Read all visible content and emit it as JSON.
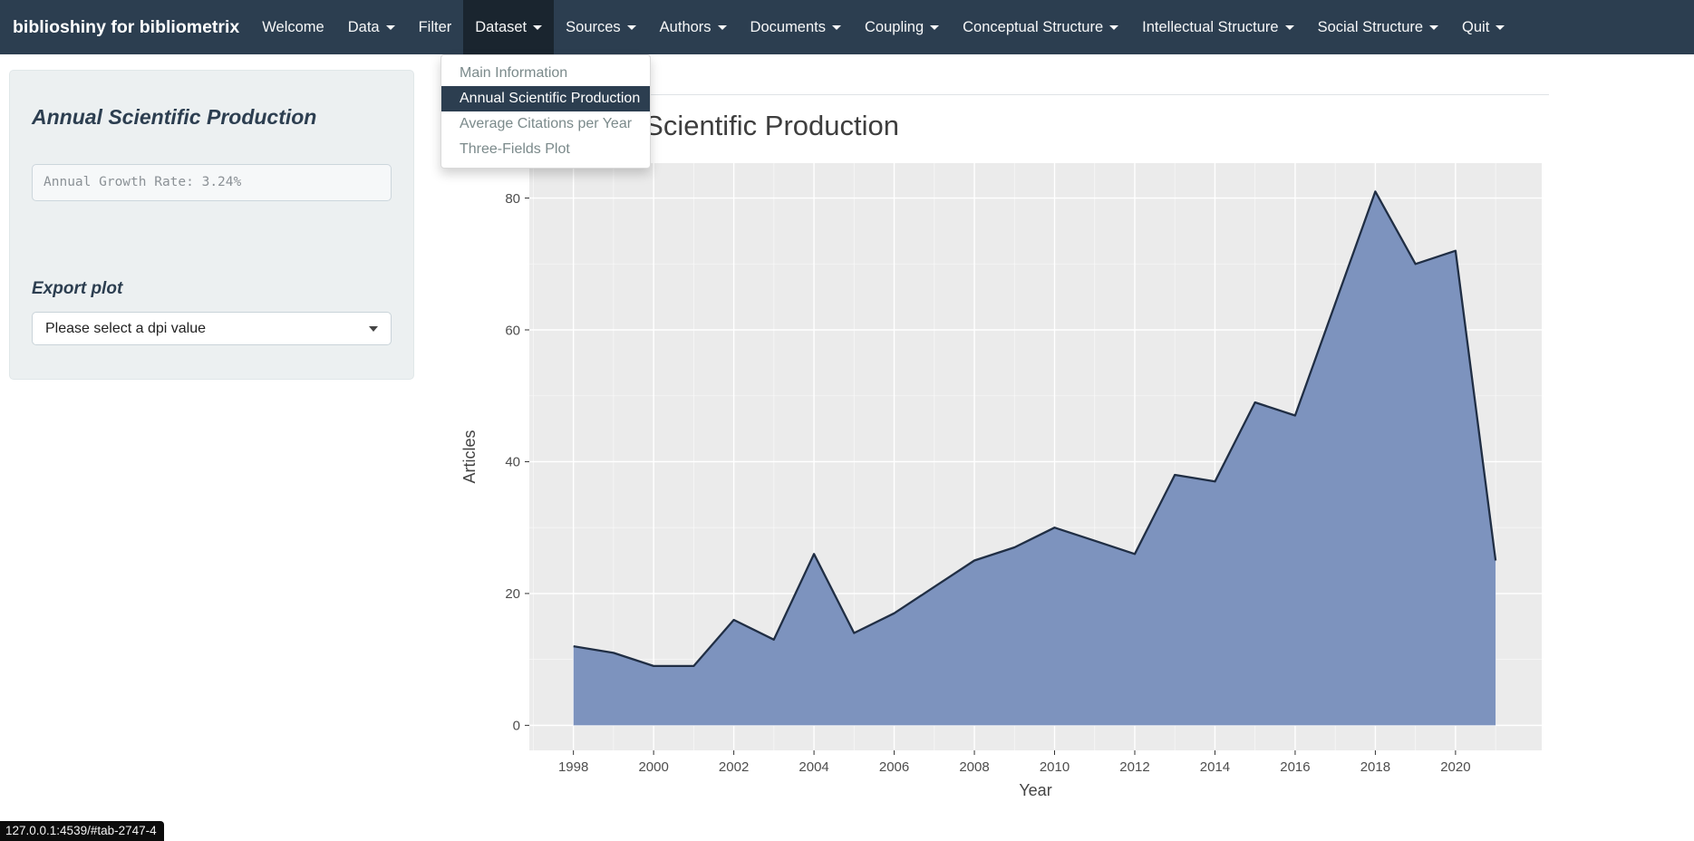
{
  "navbar": {
    "brand": "biblioshiny for bibliometrix",
    "items": [
      {
        "label": "Welcome",
        "caret": false,
        "active": false
      },
      {
        "label": "Data",
        "caret": true,
        "active": false
      },
      {
        "label": "Filter",
        "caret": false,
        "active": false
      },
      {
        "label": "Dataset",
        "caret": true,
        "active": true
      },
      {
        "label": "Sources",
        "caret": true,
        "active": false
      },
      {
        "label": "Authors",
        "caret": true,
        "active": false
      },
      {
        "label": "Documents",
        "caret": true,
        "active": false
      },
      {
        "label": "Coupling",
        "caret": true,
        "active": false
      },
      {
        "label": "Conceptual Structure",
        "caret": true,
        "active": false
      },
      {
        "label": "Intellectual Structure",
        "caret": true,
        "active": false
      },
      {
        "label": "Social Structure",
        "caret": true,
        "active": false
      },
      {
        "label": "Quit",
        "caret": true,
        "active": false
      }
    ]
  },
  "dropdown": {
    "items": [
      {
        "label": "Main Information",
        "active": false
      },
      {
        "label": "Annual Scientific Production",
        "active": true
      },
      {
        "label": "Average Citations per Year",
        "active": false
      },
      {
        "label": "Three-Fields Plot",
        "active": false
      }
    ]
  },
  "sidebar": {
    "title": "Annual Scientific Production",
    "growth_rate_text": "Annual Growth Rate: 3.24%",
    "export_title": "Export plot",
    "dpi_placeholder": "Please select a dpi value"
  },
  "status_url": "127.0.0.1:4539/#tab-2747-4",
  "chart_data": {
    "type": "area",
    "title": "Annual Scientific Production",
    "xlabel": "Year",
    "ylabel": "Articles",
    "x": [
      1998,
      1999,
      2000,
      2001,
      2002,
      2003,
      2004,
      2005,
      2006,
      2007,
      2008,
      2009,
      2010,
      2011,
      2012,
      2013,
      2014,
      2015,
      2016,
      2017,
      2018,
      2019,
      2020,
      2021
    ],
    "values": [
      12,
      11,
      9,
      9,
      16,
      13,
      26,
      14,
      17,
      21,
      25,
      27,
      30,
      28,
      26,
      38,
      37,
      49,
      47,
      64,
      81,
      70,
      72,
      25
    ],
    "xlim": [
      1996.9,
      2022.15
    ],
    "ylim": [
      -3.8,
      85.3
    ],
    "x_ticks": [
      1998,
      2000,
      2002,
      2004,
      2006,
      2008,
      2010,
      2012,
      2014,
      2016,
      2018,
      2020
    ],
    "x_minor": [
      1997,
      1999,
      2001,
      2003,
      2005,
      2007,
      2009,
      2011,
      2013,
      2015,
      2017,
      2019,
      2021
    ],
    "y_ticks": [
      0,
      20,
      40,
      60,
      80
    ],
    "y_minor": [
      10,
      30,
      50,
      70
    ],
    "grid": true,
    "legend": false,
    "colors": {
      "fill": "#7d93be",
      "line": "#202e44",
      "plot_bg": "#ebebeb",
      "grid_major": "#ffffff",
      "grid_minor": "#f7f7f7",
      "tick_text": "#4d4d4d",
      "axis_title": "#444444",
      "tick_mark": "#333333"
    }
  }
}
